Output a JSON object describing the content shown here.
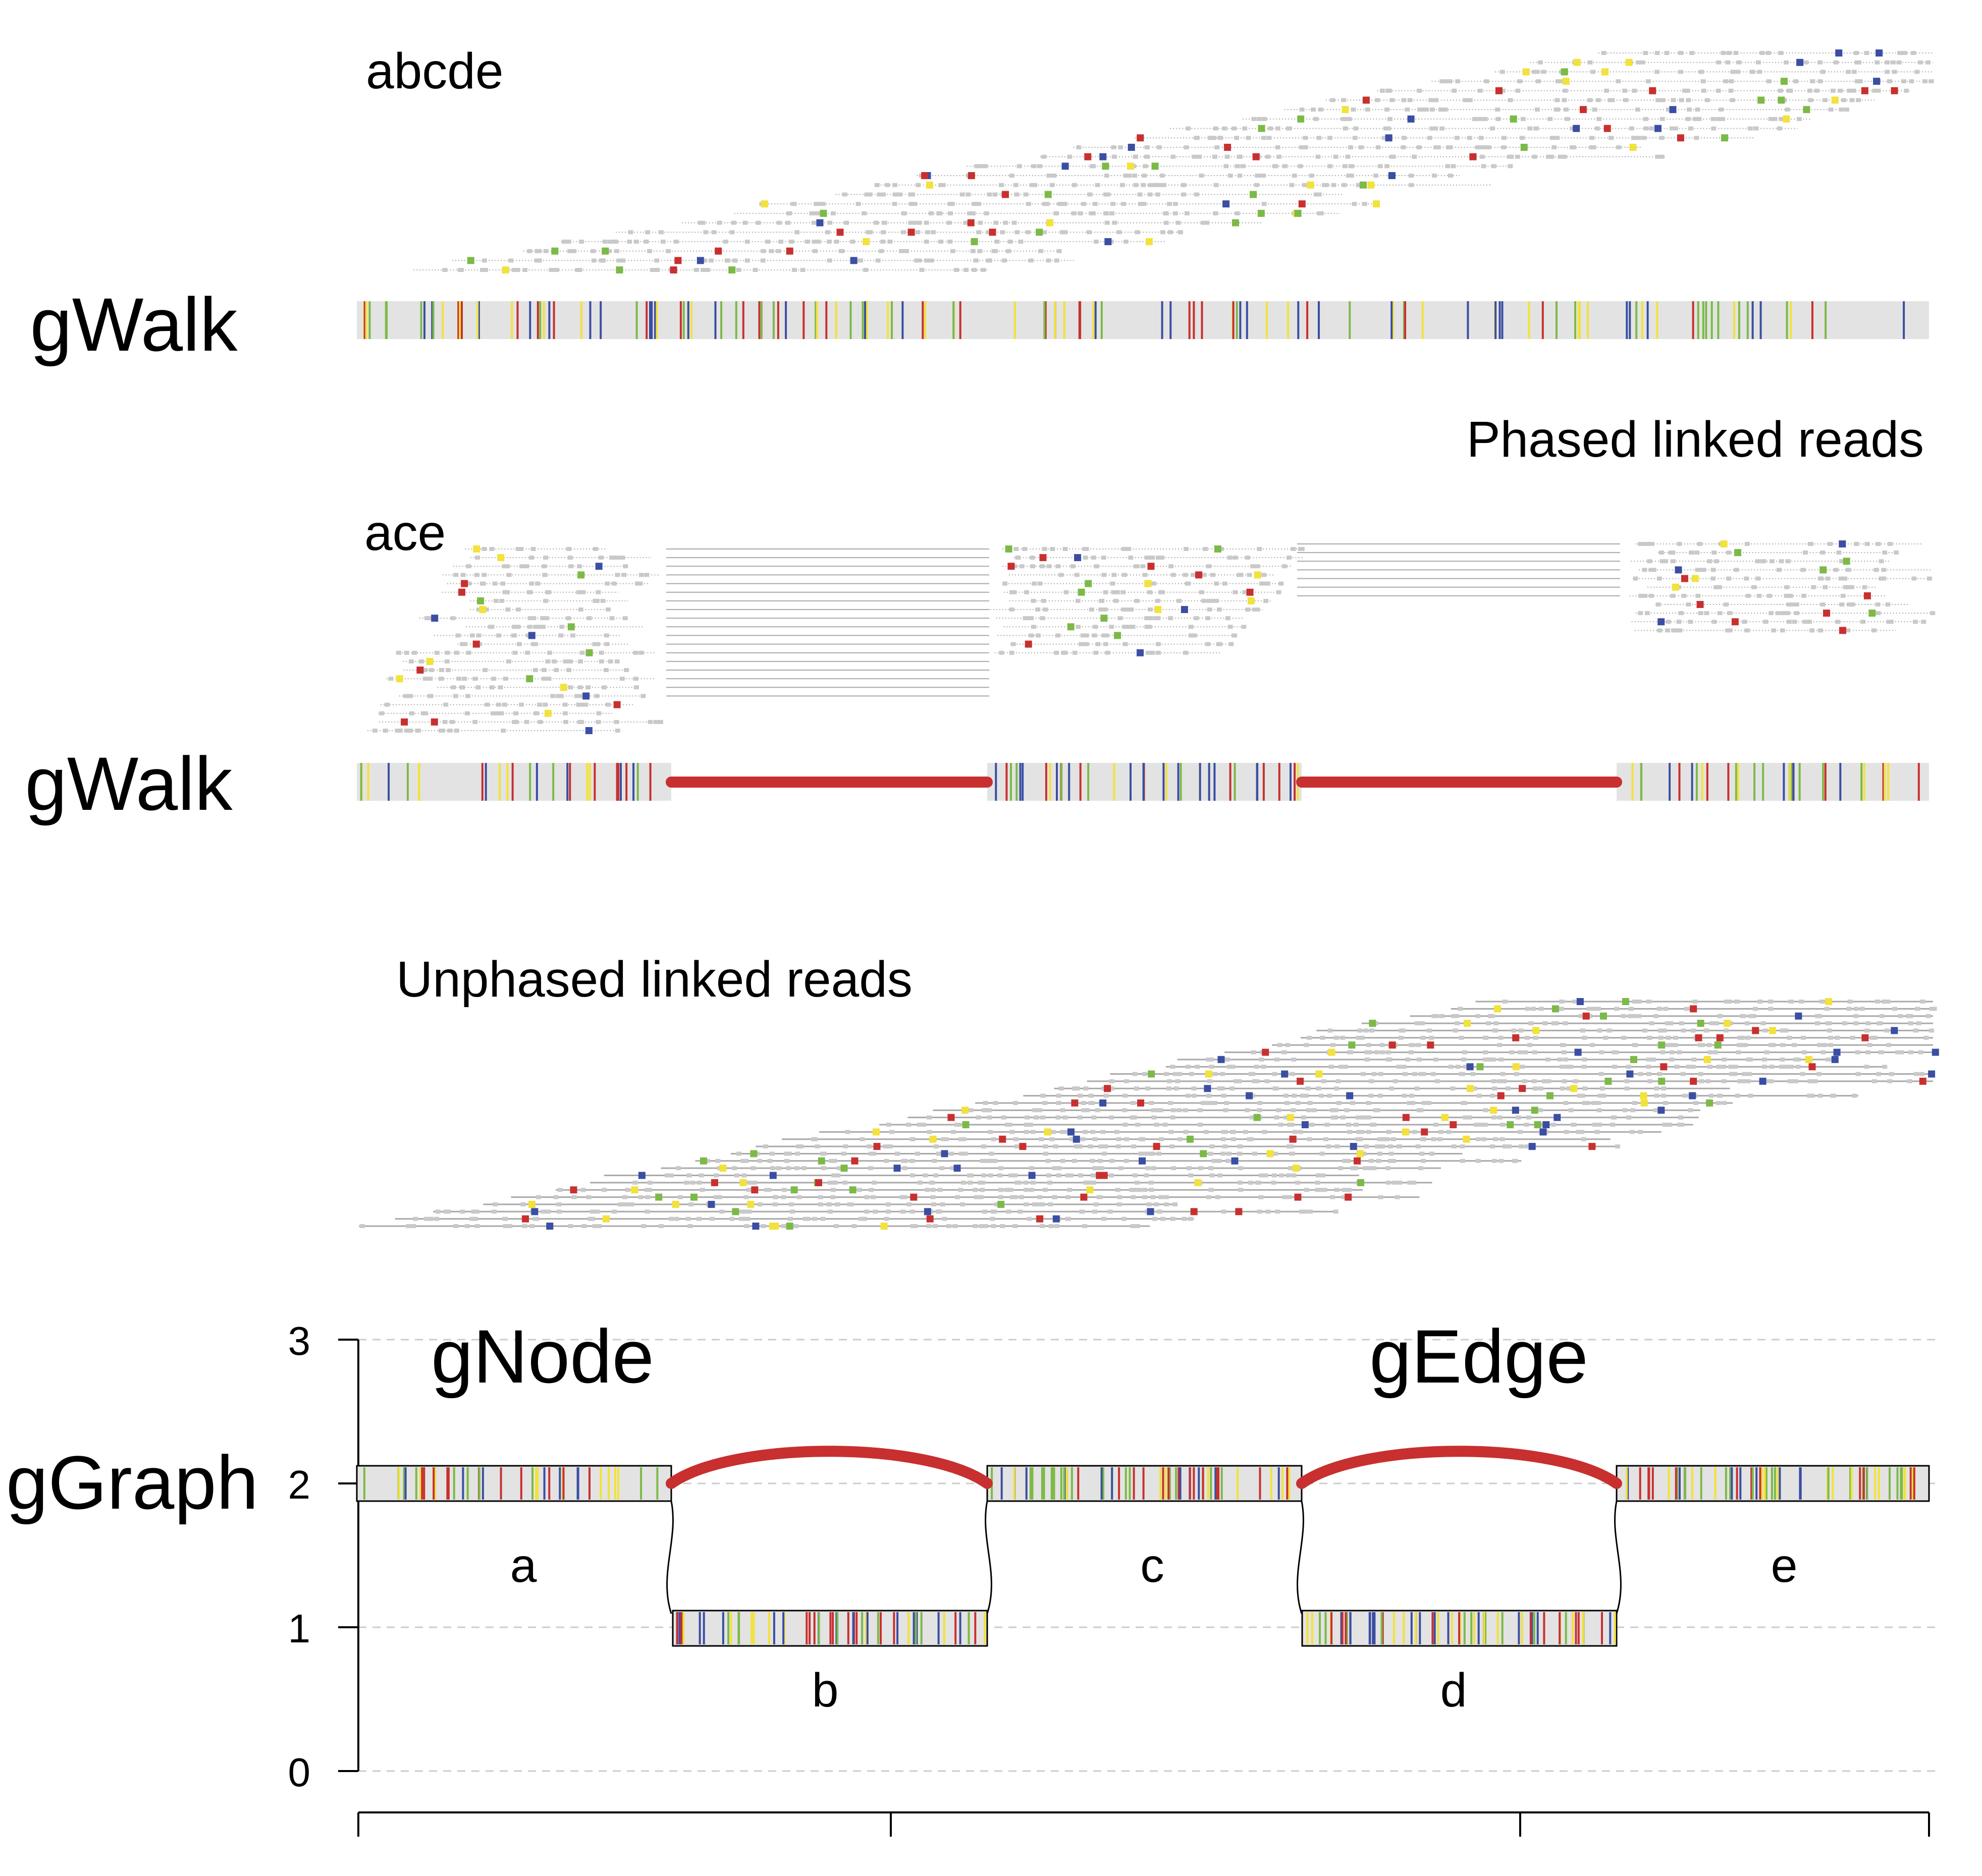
{
  "track_labels": {
    "walk_top": "gWalk",
    "walk_middle": "gWalk",
    "graph": "gGraph"
  },
  "panel_labels": {
    "walk_abcde": "abcde",
    "walk_ace": "ace",
    "phased": "Phased linked reads",
    "unphased": "Unphased linked reads"
  },
  "annotations": {
    "node": "gNode",
    "edge": "gEdge"
  },
  "nodes": [
    {
      "name": "a",
      "level": 2
    },
    {
      "name": "b",
      "level": 1
    },
    {
      "name": "c",
      "level": 2
    },
    {
      "name": "d",
      "level": 1
    },
    {
      "name": "e",
      "level": 2
    }
  ],
  "y_axis": {
    "ticks": [
      "0",
      "1",
      "2",
      "3"
    ],
    "range": [
      0,
      3
    ]
  },
  "colors": {
    "snv_red": "#c8302f",
    "snv_green": "#7cba47",
    "snv_blue": "#3b4ea3",
    "snv_yellow": "#f2e23a",
    "node_fill": "#e3e3e3",
    "edge_red": "#c7302f",
    "read_gray": "#a9a9a9",
    "grid": "#cccccc"
  }
}
